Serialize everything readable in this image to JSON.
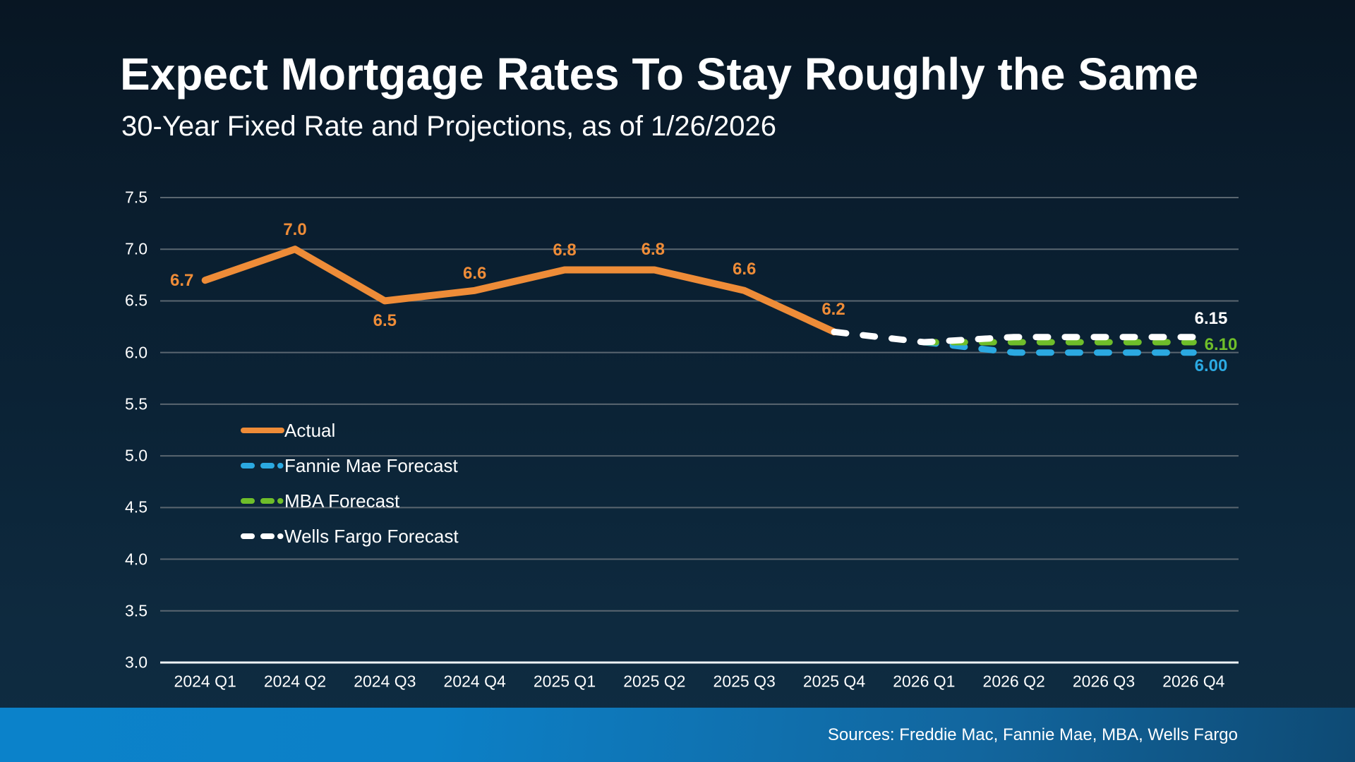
{
  "slide": {
    "title": "Expect Mortgage Rates To Stay Roughly the Same",
    "subtitle": "30-Year Fixed Rate and Projections, as of 1/26/2026",
    "sources": "Sources: Freddie Mac, Fannie Mae, MBA, Wells Fargo"
  },
  "colors": {
    "background_top": "#081623",
    "background_bottom": "#113049",
    "footer_left": "#0A81C9",
    "footer_right": "#0E4D79",
    "gridline": "#5A6670",
    "axis_line": "#EDF2F5",
    "text": "#FFFFFF",
    "actual": "#EE8C38",
    "fannie_mae": "#2BA9E1",
    "mba": "#6FBE2A",
    "wells_fargo": "#FFFFFF"
  },
  "chart_data": {
    "type": "line",
    "title": "Expect Mortgage Rates To Stay Roughly the Same",
    "subtitle": "30-Year Fixed Rate and Projections, as of 1/26/2026",
    "categories": [
      "2024 Q1",
      "2024 Q2",
      "2024 Q3",
      "2024 Q4",
      "2025 Q1",
      "2025 Q2",
      "2025 Q3",
      "2025 Q4",
      "2026 Q1",
      "2026 Q2",
      "2026 Q3",
      "2026 Q4"
    ],
    "ylim": [
      3.0,
      7.5
    ],
    "y_tick_step": 0.5,
    "y_tick_labels": [
      "7.5",
      "7.0",
      "6.5",
      "6.0",
      "5.5",
      "5.0",
      "4.5",
      "4.0",
      "3.5",
      "3.0"
    ],
    "grid": "horizontal",
    "legend_position": "center-left",
    "series": [
      {
        "name": "Actual",
        "line_style": "solid",
        "color_key": "actual",
        "start_index": 0,
        "values": [
          6.7,
          7.0,
          6.5,
          6.6,
          6.8,
          6.8,
          6.6,
          6.2
        ],
        "point_labels": [
          "6.7",
          "7.0",
          "6.5",
          "6.6",
          "6.8",
          "6.8",
          "6.6",
          "6.2"
        ]
      },
      {
        "name": "Fannie Mae Forecast",
        "line_style": "dashed",
        "color_key": "fannie_mae",
        "start_index": 8,
        "values": [
          6.1,
          6.0,
          6.0,
          6.0
        ],
        "end_label": "6.00"
      },
      {
        "name": "MBA Forecast",
        "line_style": "dashed",
        "color_key": "mba",
        "start_index": 8,
        "values": [
          6.1,
          6.1,
          6.1,
          6.1
        ],
        "end_label": "6.10"
      },
      {
        "name": "Wells Fargo Forecast",
        "line_style": "dashed",
        "color_key": "wells_fargo",
        "start_index": 7,
        "values": [
          6.2,
          6.1,
          6.15,
          6.15,
          6.15
        ],
        "end_label": "6.15"
      }
    ]
  }
}
